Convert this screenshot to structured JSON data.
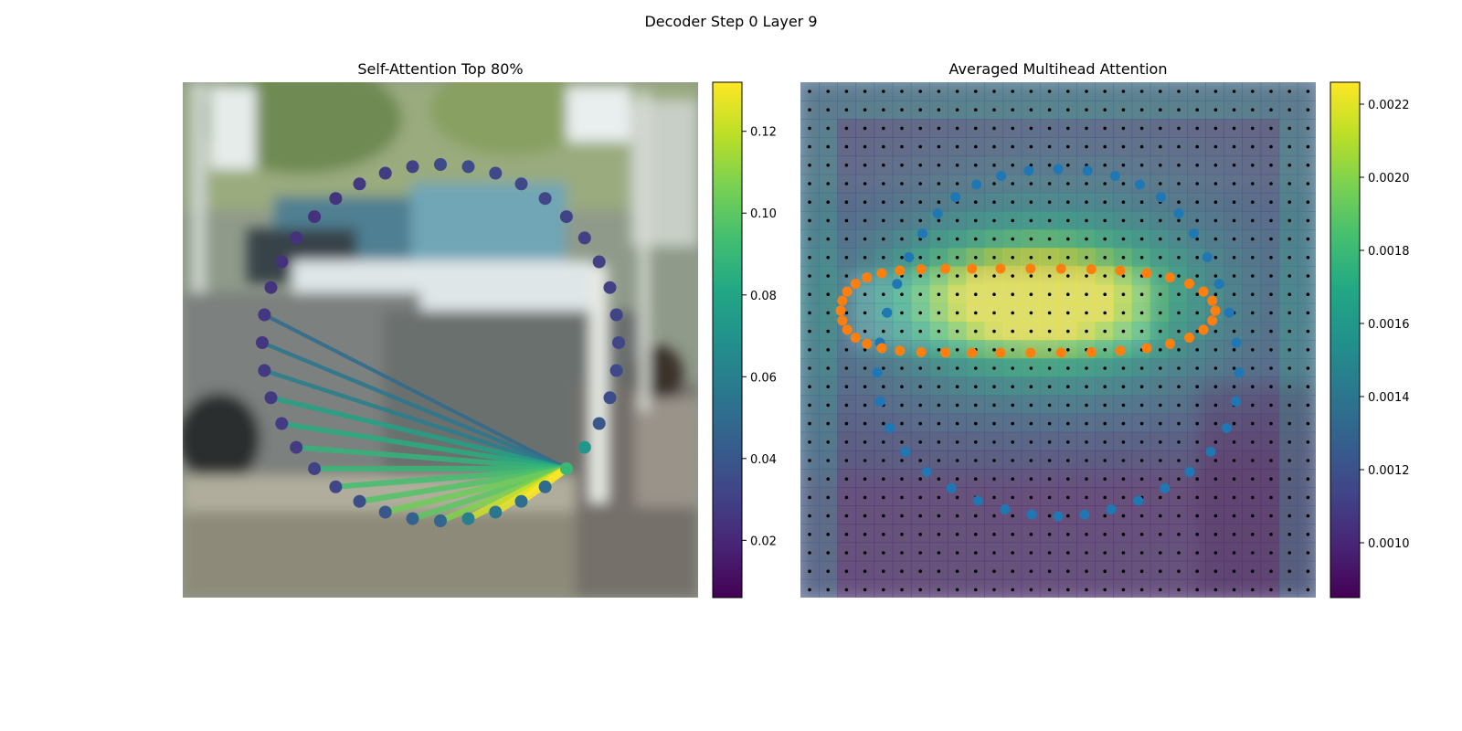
{
  "suptitle": "Decoder Step 0 Layer 9",
  "chart_data": [
    {
      "type": "scatter",
      "title": "Self-Attention Top 80%",
      "description_of_background": "blurred street photo (cars, person, trees)",
      "query_point_index": 15,
      "num_points": 40,
      "colorbar": {
        "min": 0.006,
        "max": 0.132,
        "ticks": [
          "0.02",
          "0.04",
          "0.06",
          "0.08",
          "0.10",
          "0.12"
        ],
        "tick_values": [
          0.02,
          0.04,
          0.06,
          0.08,
          0.1,
          0.12
        ]
      },
      "point_attention": [
        0.035,
        0.035,
        0.033,
        0.033,
        0.032,
        0.031,
        0.03,
        0.03,
        0.03,
        0.031,
        0.032,
        0.033,
        0.036,
        0.04,
        0.072,
        0.09,
        0.05,
        0.052,
        0.055,
        0.06,
        0.048,
        0.045,
        0.04,
        0.036,
        0.032,
        0.03,
        0.028,
        0.028,
        0.027,
        0.027,
        0.026,
        0.026,
        0.025,
        0.024,
        0.024,
        0.024,
        0.025,
        0.027,
        0.028,
        0.03
      ],
      "edges": [
        {
          "to": 17,
          "weight": 0.132
        },
        {
          "to": 18,
          "weight": 0.128
        },
        {
          "to": 19,
          "weight": 0.122
        },
        {
          "to": 20,
          "weight": 0.108
        },
        {
          "to": 21,
          "weight": 0.1
        },
        {
          "to": 22,
          "weight": 0.104
        },
        {
          "to": 23,
          "weight": 0.098
        },
        {
          "to": 24,
          "weight": 0.094
        },
        {
          "to": 25,
          "weight": 0.09
        },
        {
          "to": 26,
          "weight": 0.088
        },
        {
          "to": 27,
          "weight": 0.084
        },
        {
          "to": 28,
          "weight": 0.078
        },
        {
          "to": 29,
          "weight": 0.06
        },
        {
          "to": 30,
          "weight": 0.056
        },
        {
          "to": 31,
          "weight": 0.05
        }
      ]
    },
    {
      "type": "heatmap",
      "title": "Averaged Multihead Attention",
      "grid_size": 28,
      "colorbar": {
        "min": 0.00085,
        "max": 0.00226,
        "ticks": [
          "0.0010",
          "0.0012",
          "0.0014",
          "0.0016",
          "0.0018",
          "0.0020",
          "0.0022"
        ],
        "tick_values": [
          0.001,
          0.0012,
          0.0014,
          0.0016,
          0.0018,
          0.002,
          0.0022
        ]
      },
      "series": [
        {
          "marker": "blue-points",
          "count": 40
        },
        {
          "marker": "orange-points",
          "count": 40
        }
      ],
      "colors": {
        "blue_points": "#1f77b4",
        "orange_points": "#ff7f0e",
        "grid_dots": "#000000"
      }
    }
  ]
}
